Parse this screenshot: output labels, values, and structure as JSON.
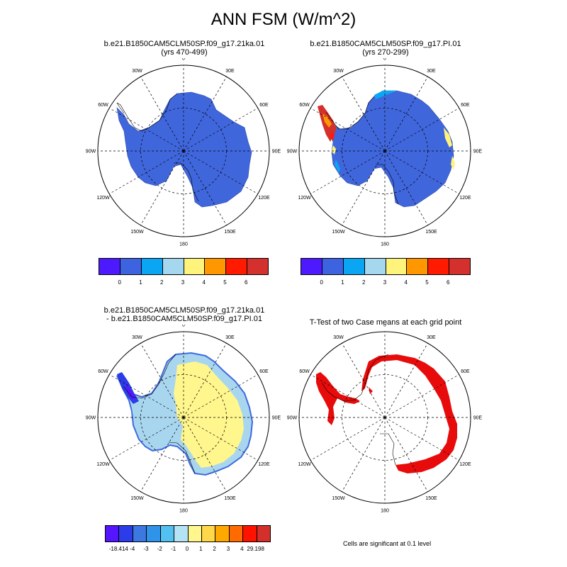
{
  "title": "ANN FSM (W/m^2)",
  "panels": [
    {
      "title1": "b.e21.B1850CAM5CLM50SP.f09_g17.21ka.01",
      "title2": "(yrs 470-499)"
    },
    {
      "title1": "b.e21.B1850CAM5CLM50SP.f09_g17.PI.01",
      "title2": "(yrs 270-299)"
    },
    {
      "title1": "b.e21.B1850CAM5CLM50SP.f09_g17.21ka.01",
      "title2": "- b.e21.B1850CAM5CLM50SP.f09_g17.PI.01"
    },
    {
      "title1": "T-Test of two Case means at each grid point",
      "title2": ""
    }
  ],
  "lon_labels": [
    "0",
    "30E",
    "60E",
    "90E",
    "120E",
    "150E",
    "180",
    "150W",
    "120W",
    "90W",
    "60W",
    "30W"
  ],
  "colorbar_main": {
    "colors": [
      "#4d1aff",
      "#3d63e1",
      "#0ba6f3",
      "#a5d7ee",
      "#fff47b",
      "#ff9800",
      "#ff1a00",
      "#d4302d"
    ],
    "labels": [
      "0",
      "1",
      "2",
      "3",
      "4",
      "5",
      "6"
    ]
  },
  "colorbar_diff": {
    "colors": [
      "#5516ff",
      "#2b3ce8",
      "#3d77e0",
      "#2f93ea",
      "#52c0f0",
      "#b4e3f3",
      "#fff68d",
      "#ffd84a",
      "#ffa800",
      "#ff6b00",
      "#ff1200",
      "#d3302c"
    ],
    "labels": [
      "-18.414",
      "-4",
      "-3",
      "-2",
      "-1",
      "0",
      "1",
      "2",
      "3",
      "4",
      "29.198"
    ]
  },
  "footnote": "Cells are significant at 0.1 level",
  "colors": {
    "land_main": "#4066dc",
    "diff_blue": "#a9d6ef",
    "diff_yellow": "#fff68d",
    "diff_dark": "#3e6ade",
    "sig_red": "#e80b0b"
  }
}
